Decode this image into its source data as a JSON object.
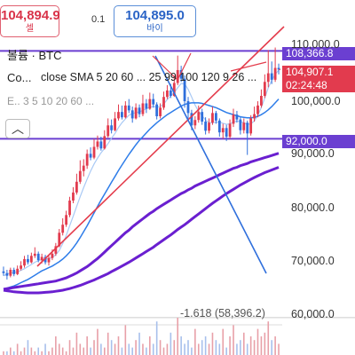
{
  "order": {
    "sell_price": "104,894.9",
    "sell_label": "셀",
    "spread": "0.1",
    "buy_price": "104,895.0",
    "buy_label": "바이"
  },
  "legend": {
    "volume": "볼륨 · BTC",
    "sma_prefix": "Co...",
    "sma_text": "close SMA 5 20 60 ... 25 99 100 120 9 26 ...",
    "ema_text": "E.. 3 5 10 20 60 ..."
  },
  "tags": {
    "resistance": "108,366.8",
    "last_price": "104,907.1",
    "countdown": "02:24:48",
    "support": "92,000.0"
  },
  "fib_label": "-1.618 (58,396.2)",
  "colors": {
    "up": "#e23b4e",
    "down": "#2f6fdc",
    "sma_light": "#a9c9f5",
    "sma_mid": "#2e7de9",
    "sma_long": "#6a1fd0",
    "level_line": "#6b3fd1",
    "trend_red": "#e43c4c",
    "trend_blue": "#2f6fdc"
  },
  "icons": {
    "collapse": "chevron-up-icon"
  },
  "chart_data": {
    "type": "candlestick",
    "y_axis_ticks": [
      "110,000.0",
      "100,000.0",
      "90,000.0",
      "80,000.0",
      "70,000.0",
      "60,000.0"
    ],
    "ylim": [
      57700,
      112300
    ],
    "levels": {
      "resistance": 108366.8,
      "support": 92000.0,
      "fib_-1.618": 58396.2
    },
    "last_price": 104907.1,
    "candles": [
      [
        67300,
        67000,
        68200,
        66500
      ],
      [
        67000,
        66500,
        67600,
        65800
      ],
      [
        66500,
        67600,
        68000,
        66200
      ],
      [
        67600,
        66800,
        68000,
        66400
      ],
      [
        66800,
        67800,
        68400,
        66600
      ],
      [
        67800,
        68400,
        69200,
        67500
      ],
      [
        68400,
        69600,
        70200,
        68000
      ],
      [
        69600,
        69000,
        70400,
        68600
      ],
      [
        69000,
        70200,
        70800,
        68800
      ],
      [
        70200,
        70600,
        71800,
        69800
      ],
      [
        70600,
        69400,
        71000,
        69000
      ],
      [
        69400,
        70000,
        70600,
        68800
      ],
      [
        70000,
        69000,
        70400,
        68600
      ],
      [
        69000,
        69800,
        70200,
        68400
      ],
      [
        69800,
        70600,
        71400,
        69400
      ],
      [
        70600,
        72000,
        72600,
        70200
      ],
      [
        72000,
        74500,
        75200,
        71800
      ],
      [
        74500,
        76000,
        77200,
        74000
      ],
      [
        76000,
        77800,
        78600,
        75600
      ],
      [
        77800,
        80500,
        81200,
        77400
      ],
      [
        80500,
        82000,
        83000,
        80000
      ],
      [
        82000,
        84000,
        85500,
        81600
      ],
      [
        84000,
        86000,
        88000,
        83600
      ],
      [
        86000,
        87000,
        88200,
        85000
      ],
      [
        87000,
        89200,
        90000,
        86400
      ],
      [
        89200,
        88500,
        90400,
        88000
      ],
      [
        88500,
        90500,
        92000,
        88200
      ],
      [
        90500,
        91500,
        92600,
        90000
      ],
      [
        91500,
        90200,
        92400,
        89800
      ],
      [
        90200,
        92500,
        93600,
        90000
      ],
      [
        92500,
        94500,
        95800,
        92200
      ],
      [
        94500,
        93600,
        95600,
        93000
      ],
      [
        93600,
        95800,
        97000,
        93400
      ],
      [
        95800,
        97000,
        98400,
        95400
      ],
      [
        97000,
        96000,
        98200,
        95600
      ],
      [
        96000,
        98200,
        99000,
        95800
      ],
      [
        98200,
        97300,
        99400,
        96800
      ],
      [
        97300,
        95800,
        98000,
        95000
      ],
      [
        95800,
        97800,
        98600,
        95600
      ],
      [
        97800,
        96600,
        98400,
        96000
      ],
      [
        96600,
        98600,
        100200,
        96200
      ],
      [
        98600,
        97600,
        99400,
        96800
      ],
      [
        97600,
        99400,
        100600,
        97400
      ],
      [
        99400,
        98400,
        100400,
        97800
      ],
      [
        98400,
        96200,
        98800,
        95600
      ],
      [
        96200,
        97800,
        98600,
        95800
      ],
      [
        97800,
        99800,
        100800,
        97400
      ],
      [
        99800,
        101000,
        102000,
        99400
      ],
      [
        101000,
        100000,
        102200,
        99600
      ],
      [
        100000,
        102400,
        103800,
        99800
      ],
      [
        102400,
        104800,
        107500,
        102000
      ],
      [
        104800,
        103200,
        105600,
        102600
      ],
      [
        103200,
        99000,
        103800,
        97800
      ],
      [
        99000,
        96800,
        99800,
        95800
      ],
      [
        96800,
        94500,
        97400,
        93600
      ],
      [
        94500,
        95500,
        96200,
        93800
      ],
      [
        95500,
        97000,
        98200,
        95000
      ],
      [
        97000,
        95200,
        97600,
        94600
      ],
      [
        95200,
        93500,
        96000,
        92800
      ],
      [
        93500,
        95000,
        95800,
        93000
      ],
      [
        95000,
        96800,
        98000,
        94600
      ],
      [
        96800,
        95400,
        97200,
        94800
      ],
      [
        95400,
        93200,
        95800,
        92400
      ],
      [
        93200,
        94000,
        94800,
        92000
      ],
      [
        94000,
        92400,
        94600,
        91600
      ],
      [
        92400,
        94800,
        95600,
        92000
      ],
      [
        94800,
        96500,
        97600,
        94200
      ],
      [
        96500,
        95600,
        97200,
        95000
      ],
      [
        95600,
        93600,
        96000,
        92800
      ],
      [
        93600,
        95000,
        95800,
        93000
      ],
      [
        95000,
        93000,
        95400,
        89000
      ],
      [
        93000,
        95800,
        96400,
        92600
      ],
      [
        95800,
        96600,
        98000,
        95200
      ],
      [
        96600,
        98200,
        99000,
        96000
      ],
      [
        98200,
        100000,
        101200,
        97800
      ],
      [
        100000,
        102600,
        104000,
        99600
      ],
      [
        102600,
        104200,
        108500,
        101600
      ],
      [
        104200,
        103000,
        106400,
        102200
      ],
      [
        103000,
        105200,
        109000,
        102600
      ],
      [
        105200,
        104907,
        106000,
        104000
      ]
    ],
    "series": [
      {
        "name": "SMA 5",
        "values": [
          66500,
          66800,
          67000,
          67100,
          67200,
          67500,
          67800,
          68200,
          68600,
          69000,
          69300,
          69500,
          69600,
          69700,
          69900,
          70400,
          71200,
          72500,
          74000,
          75800,
          77600,
          79400,
          81200,
          82900,
          84500,
          86000,
          87300,
          88400,
          89400,
          90200,
          91100,
          92100,
          93000,
          94100,
          95000,
          95700,
          96400,
          96700,
          96900,
          97000,
          97300,
          97600,
          97900,
          98000,
          97900,
          98000,
          98500,
          99300,
          100000,
          100600,
          101500,
          102300,
          102200,
          101200,
          99800,
          98300,
          97100,
          96300,
          95500,
          95000,
          95000,
          95100,
          95100,
          94900,
          94700,
          94800,
          95100,
          95300,
          95200,
          95000,
          94700,
          94800,
          95300,
          96400,
          97800,
          99600,
          101500,
          102900,
          104000,
          104800
        ]
      },
      {
        "name": "SMA 20",
        "values": [
          64000,
          64200,
          64400,
          64600,
          64900,
          65200,
          65500,
          65800,
          66200,
          66600,
          67000,
          67400,
          67700,
          68000,
          68300,
          68700,
          69100,
          69600,
          70200,
          70900,
          71700,
          72600,
          73600,
          74700,
          75800,
          77000,
          78200,
          79400,
          80600,
          81700,
          82800,
          83900,
          85000,
          86100,
          87100,
          88100,
          89100,
          90000,
          90900,
          91700,
          92400,
          93100,
          93800,
          94400,
          95000,
          95500,
          96000,
          96500,
          96900,
          97300,
          97700,
          98100,
          98400,
          98600,
          98700,
          98700,
          98700,
          98600,
          98400,
          98200,
          98000,
          97800,
          97500,
          97200,
          96900,
          96700,
          96500,
          96300,
          96100,
          96000,
          95900,
          95900,
          96000,
          96200,
          96500,
          96900,
          97400,
          98000,
          98700,
          99400
        ]
      },
      {
        "name": "SMA 60",
        "values": [
          64000,
          64100,
          64200,
          64300,
          64400,
          64500,
          64600,
          64700,
          64800,
          64900,
          65000,
          65100,
          65200,
          65300,
          65400,
          65500,
          65700,
          65900,
          66100,
          66400,
          66700,
          67000,
          67400,
          67800,
          68200,
          68700,
          69200,
          69700,
          70300,
          70900,
          71500,
          72100,
          72700,
          73300,
          73900,
          74500,
          75000,
          75600,
          76100,
          76600,
          77100,
          77600,
          78100,
          78500,
          79000,
          79400,
          79800,
          80200,
          80600,
          81000,
          81400,
          81800,
          82100,
          82500,
          82800,
          83200,
          83500,
          83800,
          84100,
          84400,
          84700,
          85000,
          85300,
          85600,
          85900,
          86200,
          86500,
          86700,
          87000,
          87200,
          87400,
          87700,
          87900,
          88100,
          88300,
          88500,
          88700,
          88900,
          89100,
          89300
        ]
      },
      {
        "name": "SMA 100",
        "values": [
          63800,
          63700,
          63600,
          63500,
          63450,
          63400,
          63350,
          63300,
          63300,
          63300,
          63300,
          63350,
          63400,
          63450,
          63500,
          63600,
          63700,
          63800,
          63950,
          64100,
          64300,
          64500,
          64700,
          64950,
          65200,
          65450,
          65700,
          66000,
          66300,
          66600,
          66900,
          67250,
          67600,
          67950,
          68300,
          68650,
          69000,
          69400,
          69800,
          70200,
          70600,
          71000,
          71400,
          71800,
          72300,
          72750,
          73200,
          73650,
          74100,
          74600,
          75100,
          75550,
          76000,
          76500,
          77000,
          77500,
          78000,
          78500,
          79000,
          79500,
          80000,
          80450,
          80900,
          81350,
          81800,
          82200,
          82600,
          83000,
          83400,
          83750,
          84100,
          84450,
          84800,
          85100,
          85400,
          85700,
          85950,
          86200,
          86450,
          86700
        ]
      }
    ],
    "trendlines": [
      {
        "name": "red-trend",
        "from": [
          0.105,
          0.62
        ],
        "to": [
          0.79,
          0.93
        ]
      },
      {
        "name": "blue-trend",
        "from": [
          0.43,
          0.93
        ],
        "to": [
          0.75,
          0.19
        ]
      }
    ],
    "volume": [
      1,
      1,
      2,
      1,
      3,
      1,
      2,
      4,
      2,
      1,
      2,
      1,
      3,
      1,
      2,
      5,
      3,
      2,
      1,
      4,
      2,
      6,
      3,
      2,
      5,
      2,
      4,
      7,
      3,
      2,
      6,
      4,
      3,
      5,
      2,
      8,
      3,
      2,
      4,
      6,
      3,
      2,
      5,
      3,
      9,
      4,
      2,
      3,
      6,
      4,
      10,
      5,
      3,
      4,
      2,
      7,
      3,
      4,
      5,
      3,
      6,
      4,
      3,
      7,
      2,
      5,
      8,
      3,
      4,
      6,
      3,
      5,
      4,
      7,
      5,
      6,
      9,
      4,
      5,
      3
    ],
    "volume_dir": [
      "u",
      "d",
      "u",
      "d",
      "u",
      "u",
      "u",
      "d",
      "u",
      "u",
      "d",
      "u",
      "d",
      "u",
      "u",
      "u",
      "u",
      "u",
      "u",
      "u",
      "u",
      "u",
      "u",
      "u",
      "u",
      "d",
      "u",
      "u",
      "d",
      "u",
      "u",
      "d",
      "u",
      "u",
      "d",
      "u",
      "d",
      "d",
      "u",
      "d",
      "u",
      "d",
      "u",
      "d",
      "d",
      "u",
      "u",
      "u",
      "d",
      "u",
      "u",
      "d",
      "d",
      "d",
      "d",
      "u",
      "u",
      "d",
      "d",
      "u",
      "u",
      "d",
      "d",
      "u",
      "d",
      "u",
      "u",
      "d",
      "d",
      "u",
      "d",
      "u",
      "u",
      "u",
      "u",
      "u",
      "u",
      "d",
      "u",
      "u"
    ]
  }
}
